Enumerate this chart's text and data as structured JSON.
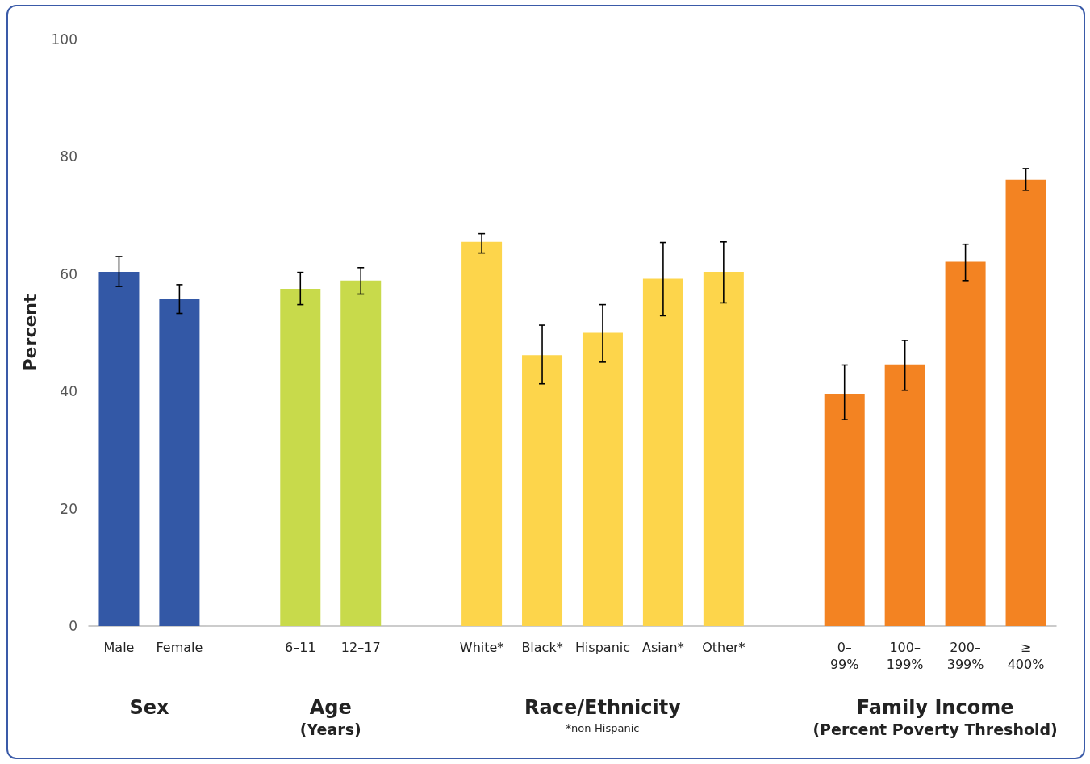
{
  "chart_data": {
    "type": "bar",
    "ylabel": "Percent",
    "categories": [
      "Male",
      "Female",
      null,
      "6–11",
      "12–17",
      null,
      "White*",
      "Black*",
      "Hispanic",
      "Asian*",
      "Other*",
      null,
      "0–99%",
      "100–199%",
      "200–399%",
      "≥ 400%"
    ],
    "values": [
      60.4,
      55.7,
      null,
      57.5,
      58.9,
      null,
      65.5,
      46.2,
      50.0,
      59.2,
      60.4,
      null,
      39.6,
      44.6,
      62.1,
      76.1
    ],
    "errors": [
      [
        57.9,
        63.0
      ],
      [
        53.3,
        58.2
      ],
      null,
      [
        54.8,
        60.3
      ],
      [
        56.6,
        61.1
      ],
      null,
      [
        63.6,
        66.9
      ],
      [
        41.3,
        51.3
      ],
      [
        45.0,
        54.8
      ],
      [
        52.9,
        65.4
      ],
      [
        55.1,
        65.5
      ],
      null,
      [
        35.2,
        44.5
      ],
      [
        40.2,
        48.7
      ],
      [
        58.9,
        65.1
      ],
      [
        74.3,
        78.0
      ]
    ],
    "colors": [
      "#3358a6",
      "#3358a6",
      null,
      "#c8da4b",
      "#c8da4b",
      null,
      "#fdd54b",
      "#fdd54b",
      "#fdd54b",
      "#fdd54b",
      "#fdd54b",
      null,
      "#f38322",
      "#f38322",
      "#f38322",
      "#f38322"
    ],
    "ylim": [
      0,
      100
    ],
    "yticks": [
      0,
      20,
      40,
      60,
      80,
      100
    ],
    "grid": false,
    "annotations": [
      "Sex",
      "Age\n(Years)",
      "Race/Ethnicity",
      "Family Income\n(Percent Poverty Threshold)",
      "*non-Hispanic"
    ]
  }
}
